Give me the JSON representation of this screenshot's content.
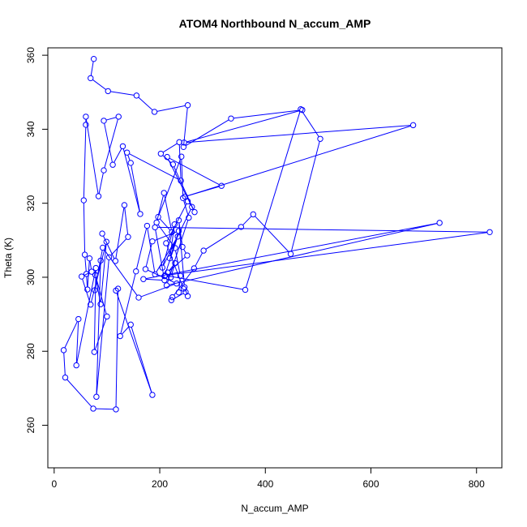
{
  "chart_data": {
    "type": "line",
    "title": "ATOM4 Northbound N_accum_AMP",
    "xlabel": "N_accum_AMP",
    "ylabel": "Theta (K)",
    "xlim": [
      -12,
      848
    ],
    "ylim": [
      248.5,
      362
    ],
    "xticks": [
      0,
      200,
      400,
      600,
      800
    ],
    "yticks": [
      260,
      280,
      300,
      320,
      340,
      360
    ],
    "grid": false,
    "legend": "none",
    "line_color": "#0000ff",
    "series": [
      {
        "points": [
          [
            75,
            359
          ],
          [
            69,
            353.8
          ],
          [
            102,
            350.3
          ],
          [
            156,
            349.1
          ],
          [
            190,
            344.7
          ],
          [
            253,
            346.5
          ],
          [
            245,
            335.2
          ],
          [
            335,
            342.9
          ],
          [
            470,
            345.2
          ],
          [
            246,
            336.4
          ],
          [
            680,
            341.1
          ],
          [
            248,
            321.8
          ],
          [
            317,
            324.7
          ],
          [
            214,
            332.5
          ],
          [
            266,
            317.6
          ],
          [
            225,
            330.5
          ],
          [
            202,
            333.4
          ],
          [
            237,
            336.5
          ],
          [
            240,
            326.1
          ],
          [
            138,
            333.7
          ],
          [
            145,
            330.9
          ],
          [
            163,
            317.1
          ],
          [
            130,
            335.4
          ],
          [
            111,
            330.4
          ],
          [
            94,
            342.3
          ],
          [
            122,
            343.4
          ],
          [
            94,
            328.9
          ],
          [
            84,
            321.9
          ],
          [
            60,
            343.4
          ],
          [
            60,
            341.2
          ],
          [
            56,
            320.8
          ],
          [
            58,
            306.1
          ],
          [
            61,
            300.9
          ],
          [
            63,
            296.7
          ],
          [
            67,
            305.1
          ],
          [
            71,
            301.5
          ],
          [
            52,
            300.2
          ],
          [
            69,
            292.6
          ],
          [
            99,
            309.6
          ],
          [
            88,
            292.7
          ],
          [
            78,
            300.6
          ],
          [
            100,
            289.4
          ],
          [
            76,
            279.8
          ],
          [
            79,
            302.5
          ],
          [
            42,
            276.2
          ],
          [
            46,
            288.7
          ],
          [
            18,
            280.3
          ],
          [
            21,
            272.9
          ],
          [
            74,
            264.5
          ],
          [
            117,
            264.3
          ],
          [
            121,
            296.9
          ],
          [
            117,
            296.4
          ],
          [
            186,
            268.2
          ],
          [
            145,
            287.2
          ],
          [
            125,
            284.1
          ],
          [
            155,
            301.6
          ],
          [
            176,
            313.9
          ],
          [
            191,
            300.8
          ],
          [
            234,
            311.0
          ],
          [
            209,
            300.3
          ],
          [
            221,
            300.0
          ],
          [
            229,
            303.8
          ],
          [
            215,
            301.3
          ],
          [
            252,
            305.9
          ],
          [
            243,
            308.2
          ],
          [
            236,
            315.4
          ],
          [
            247,
            297.3
          ],
          [
            253,
            294.9
          ],
          [
            249,
            296.0
          ],
          [
            222,
            293.8
          ],
          [
            224,
            294.6
          ],
          [
            265,
            302.4
          ],
          [
            283,
            307.2
          ],
          [
            354,
            313.6
          ],
          [
            377,
            317.0
          ],
          [
            448,
            306.3
          ],
          [
            504,
            337.4
          ],
          [
            467,
            345.4
          ],
          [
            362,
            296.6
          ],
          [
            210,
            300.5
          ],
          [
            825,
            312.2
          ],
          [
            191,
            313.5
          ],
          [
            209,
            299.2
          ],
          [
            169,
            299.5
          ],
          [
            730,
            314.7
          ],
          [
            213,
            297.8
          ],
          [
            255,
            316.1
          ],
          [
            244,
            321.4
          ],
          [
            241,
            332.6
          ],
          [
            197,
            316.3
          ],
          [
            223,
            312.2
          ],
          [
            208,
            322.8
          ],
          [
            194,
            314.8
          ],
          [
            229,
            307.9
          ],
          [
            239,
            300.4
          ],
          [
            236,
            295.9
          ],
          [
            245,
            296.9
          ],
          [
            212,
            309.2
          ],
          [
            253,
            320.5
          ],
          [
            261,
            319.0
          ],
          [
            205,
            302.6
          ],
          [
            228,
            314.3
          ],
          [
            219,
            305.1
          ],
          [
            236,
            312.5
          ],
          [
            186,
            309.7
          ],
          [
            173,
            302.2
          ],
          [
            232,
            298.3
          ],
          [
            160,
            294.5
          ],
          [
            92,
            308.0
          ],
          [
            77,
            296.5
          ],
          [
            88,
            304.5
          ],
          [
            80,
            267.7
          ],
          [
            104,
            305.4
          ],
          [
            140,
            310.9
          ],
          [
            133,
            319.5
          ],
          [
            116,
            304.4
          ],
          [
            91,
            311.8
          ]
        ]
      }
    ]
  }
}
